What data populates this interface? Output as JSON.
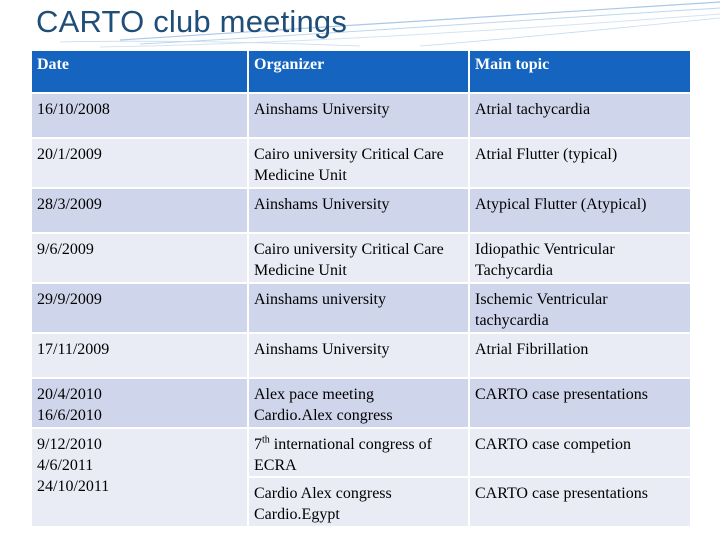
{
  "title": "CARTO club meetings",
  "columns": [
    "Date",
    "Organizer",
    "Main topic"
  ],
  "rows": [
    {
      "date": "16/10/2008",
      "organizer": "Ainshams University",
      "topic": "Atrial tachycardia"
    },
    {
      "date": "20/1/2009",
      "organizer": "Cairo university Critical Care Medicine Unit",
      "topic": "Atrial Flutter (typical)"
    },
    {
      "date": "28/3/2009",
      "organizer": "Ainshams University",
      "topic": "Atypical Flutter (Atypical)"
    },
    {
      "date": "9/6/2009",
      "organizer": "Cairo university Critical Care Medicine Unit",
      "topic": "Idiopathic Ventricular Tachycardia"
    },
    {
      "date": "29/9/2009",
      "organizer": "Ainshams university",
      "topic": "Ischemic Ventricular tachycardia"
    },
    {
      "date": "17/11/2009",
      "organizer": "Ainshams University",
      "topic": "Atrial Fibrillation"
    },
    {
      "dates": [
        "20/4/2010",
        "16/6/2010"
      ],
      "organizers": [
        "Alex pace meeting",
        "Cardio.Alex congress"
      ],
      "topic": "CARTO case presentations"
    },
    {
      "dates": [
        "9/12/2010",
        "4/6/2011",
        "24/10/2011"
      ],
      "organizer_a": {
        "ordinal": "7",
        "suffix": "th",
        "rest": " international congress of ECRA"
      },
      "organizers_b": [
        "Cardio Alex  congress",
        "Cardio.Egypt"
      ],
      "topic_a": "CARTO case competion",
      "topic_b": "CARTO case presentations"
    }
  ],
  "colors": {
    "header": "#1565c0",
    "row_dark": "#cfd5ea",
    "row_light": "#e9ebf5",
    "title": "#1f4e79"
  }
}
